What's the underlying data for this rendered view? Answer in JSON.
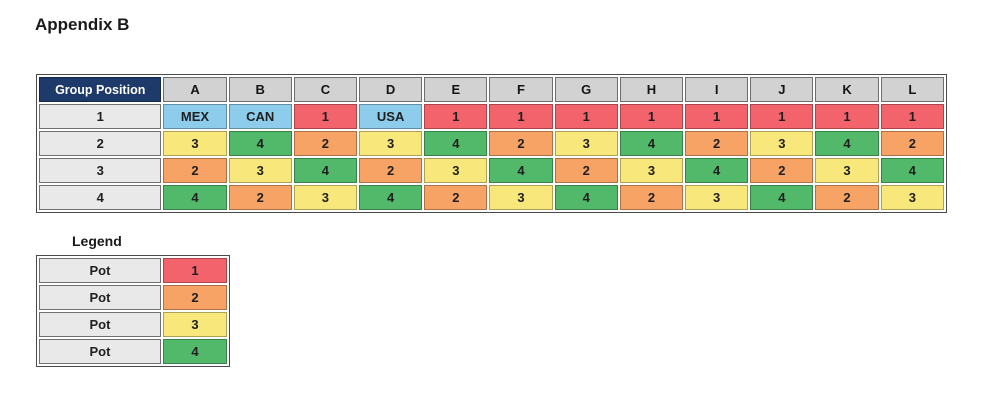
{
  "title": "Appendix B",
  "colors": {
    "red": "#F2636C",
    "orange": "#F6A365",
    "yellow": "#F8E77B",
    "green": "#52B96B",
    "blue": "#8DCCEB",
    "navy": "#1E3A6A",
    "header_gray": "#D2D2D2",
    "label_gray": "#E9E9E9"
  },
  "table": {
    "header": [
      "Group Position",
      "A",
      "B",
      "C",
      "D",
      "E",
      "F",
      "G",
      "H",
      "I",
      "J",
      "K",
      "L"
    ],
    "rows": [
      {
        "label": "1",
        "cells": [
          {
            "text": "MEX",
            "color": "blue"
          },
          {
            "text": "CAN",
            "color": "blue"
          },
          {
            "text": "1",
            "color": "red"
          },
          {
            "text": "USA",
            "color": "blue"
          },
          {
            "text": "1",
            "color": "red"
          },
          {
            "text": "1",
            "color": "red"
          },
          {
            "text": "1",
            "color": "red"
          },
          {
            "text": "1",
            "color": "red"
          },
          {
            "text": "1",
            "color": "red"
          },
          {
            "text": "1",
            "color": "red"
          },
          {
            "text": "1",
            "color": "red"
          },
          {
            "text": "1",
            "color": "red"
          }
        ]
      },
      {
        "label": "2",
        "cells": [
          {
            "text": "3",
            "color": "yellow"
          },
          {
            "text": "4",
            "color": "green"
          },
          {
            "text": "2",
            "color": "orange"
          },
          {
            "text": "3",
            "color": "yellow"
          },
          {
            "text": "4",
            "color": "green"
          },
          {
            "text": "2",
            "color": "orange"
          },
          {
            "text": "3",
            "color": "yellow"
          },
          {
            "text": "4",
            "color": "green"
          },
          {
            "text": "2",
            "color": "orange"
          },
          {
            "text": "3",
            "color": "yellow"
          },
          {
            "text": "4",
            "color": "green"
          },
          {
            "text": "2",
            "color": "orange"
          }
        ]
      },
      {
        "label": "3",
        "cells": [
          {
            "text": "2",
            "color": "orange"
          },
          {
            "text": "3",
            "color": "yellow"
          },
          {
            "text": "4",
            "color": "green"
          },
          {
            "text": "2",
            "color": "orange"
          },
          {
            "text": "3",
            "color": "yellow"
          },
          {
            "text": "4",
            "color": "green"
          },
          {
            "text": "2",
            "color": "orange"
          },
          {
            "text": "3",
            "color": "yellow"
          },
          {
            "text": "4",
            "color": "green"
          },
          {
            "text": "2",
            "color": "orange"
          },
          {
            "text": "3",
            "color": "yellow"
          },
          {
            "text": "4",
            "color": "green"
          }
        ]
      },
      {
        "label": "4",
        "cells": [
          {
            "text": "4",
            "color": "green"
          },
          {
            "text": "2",
            "color": "orange"
          },
          {
            "text": "3",
            "color": "yellow"
          },
          {
            "text": "4",
            "color": "green"
          },
          {
            "text": "2",
            "color": "orange"
          },
          {
            "text": "3",
            "color": "yellow"
          },
          {
            "text": "4",
            "color": "green"
          },
          {
            "text": "2",
            "color": "orange"
          },
          {
            "text": "3",
            "color": "yellow"
          },
          {
            "text": "4",
            "color": "green"
          },
          {
            "text": "2",
            "color": "orange"
          },
          {
            "text": "3",
            "color": "yellow"
          }
        ]
      }
    ]
  },
  "legend": {
    "title": "Legend",
    "rows": [
      {
        "label": "Pot",
        "value": "1",
        "color": "red"
      },
      {
        "label": "Pot",
        "value": "2",
        "color": "orange"
      },
      {
        "label": "Pot",
        "value": "3",
        "color": "yellow"
      },
      {
        "label": "Pot",
        "value": "4",
        "color": "green"
      }
    ]
  }
}
